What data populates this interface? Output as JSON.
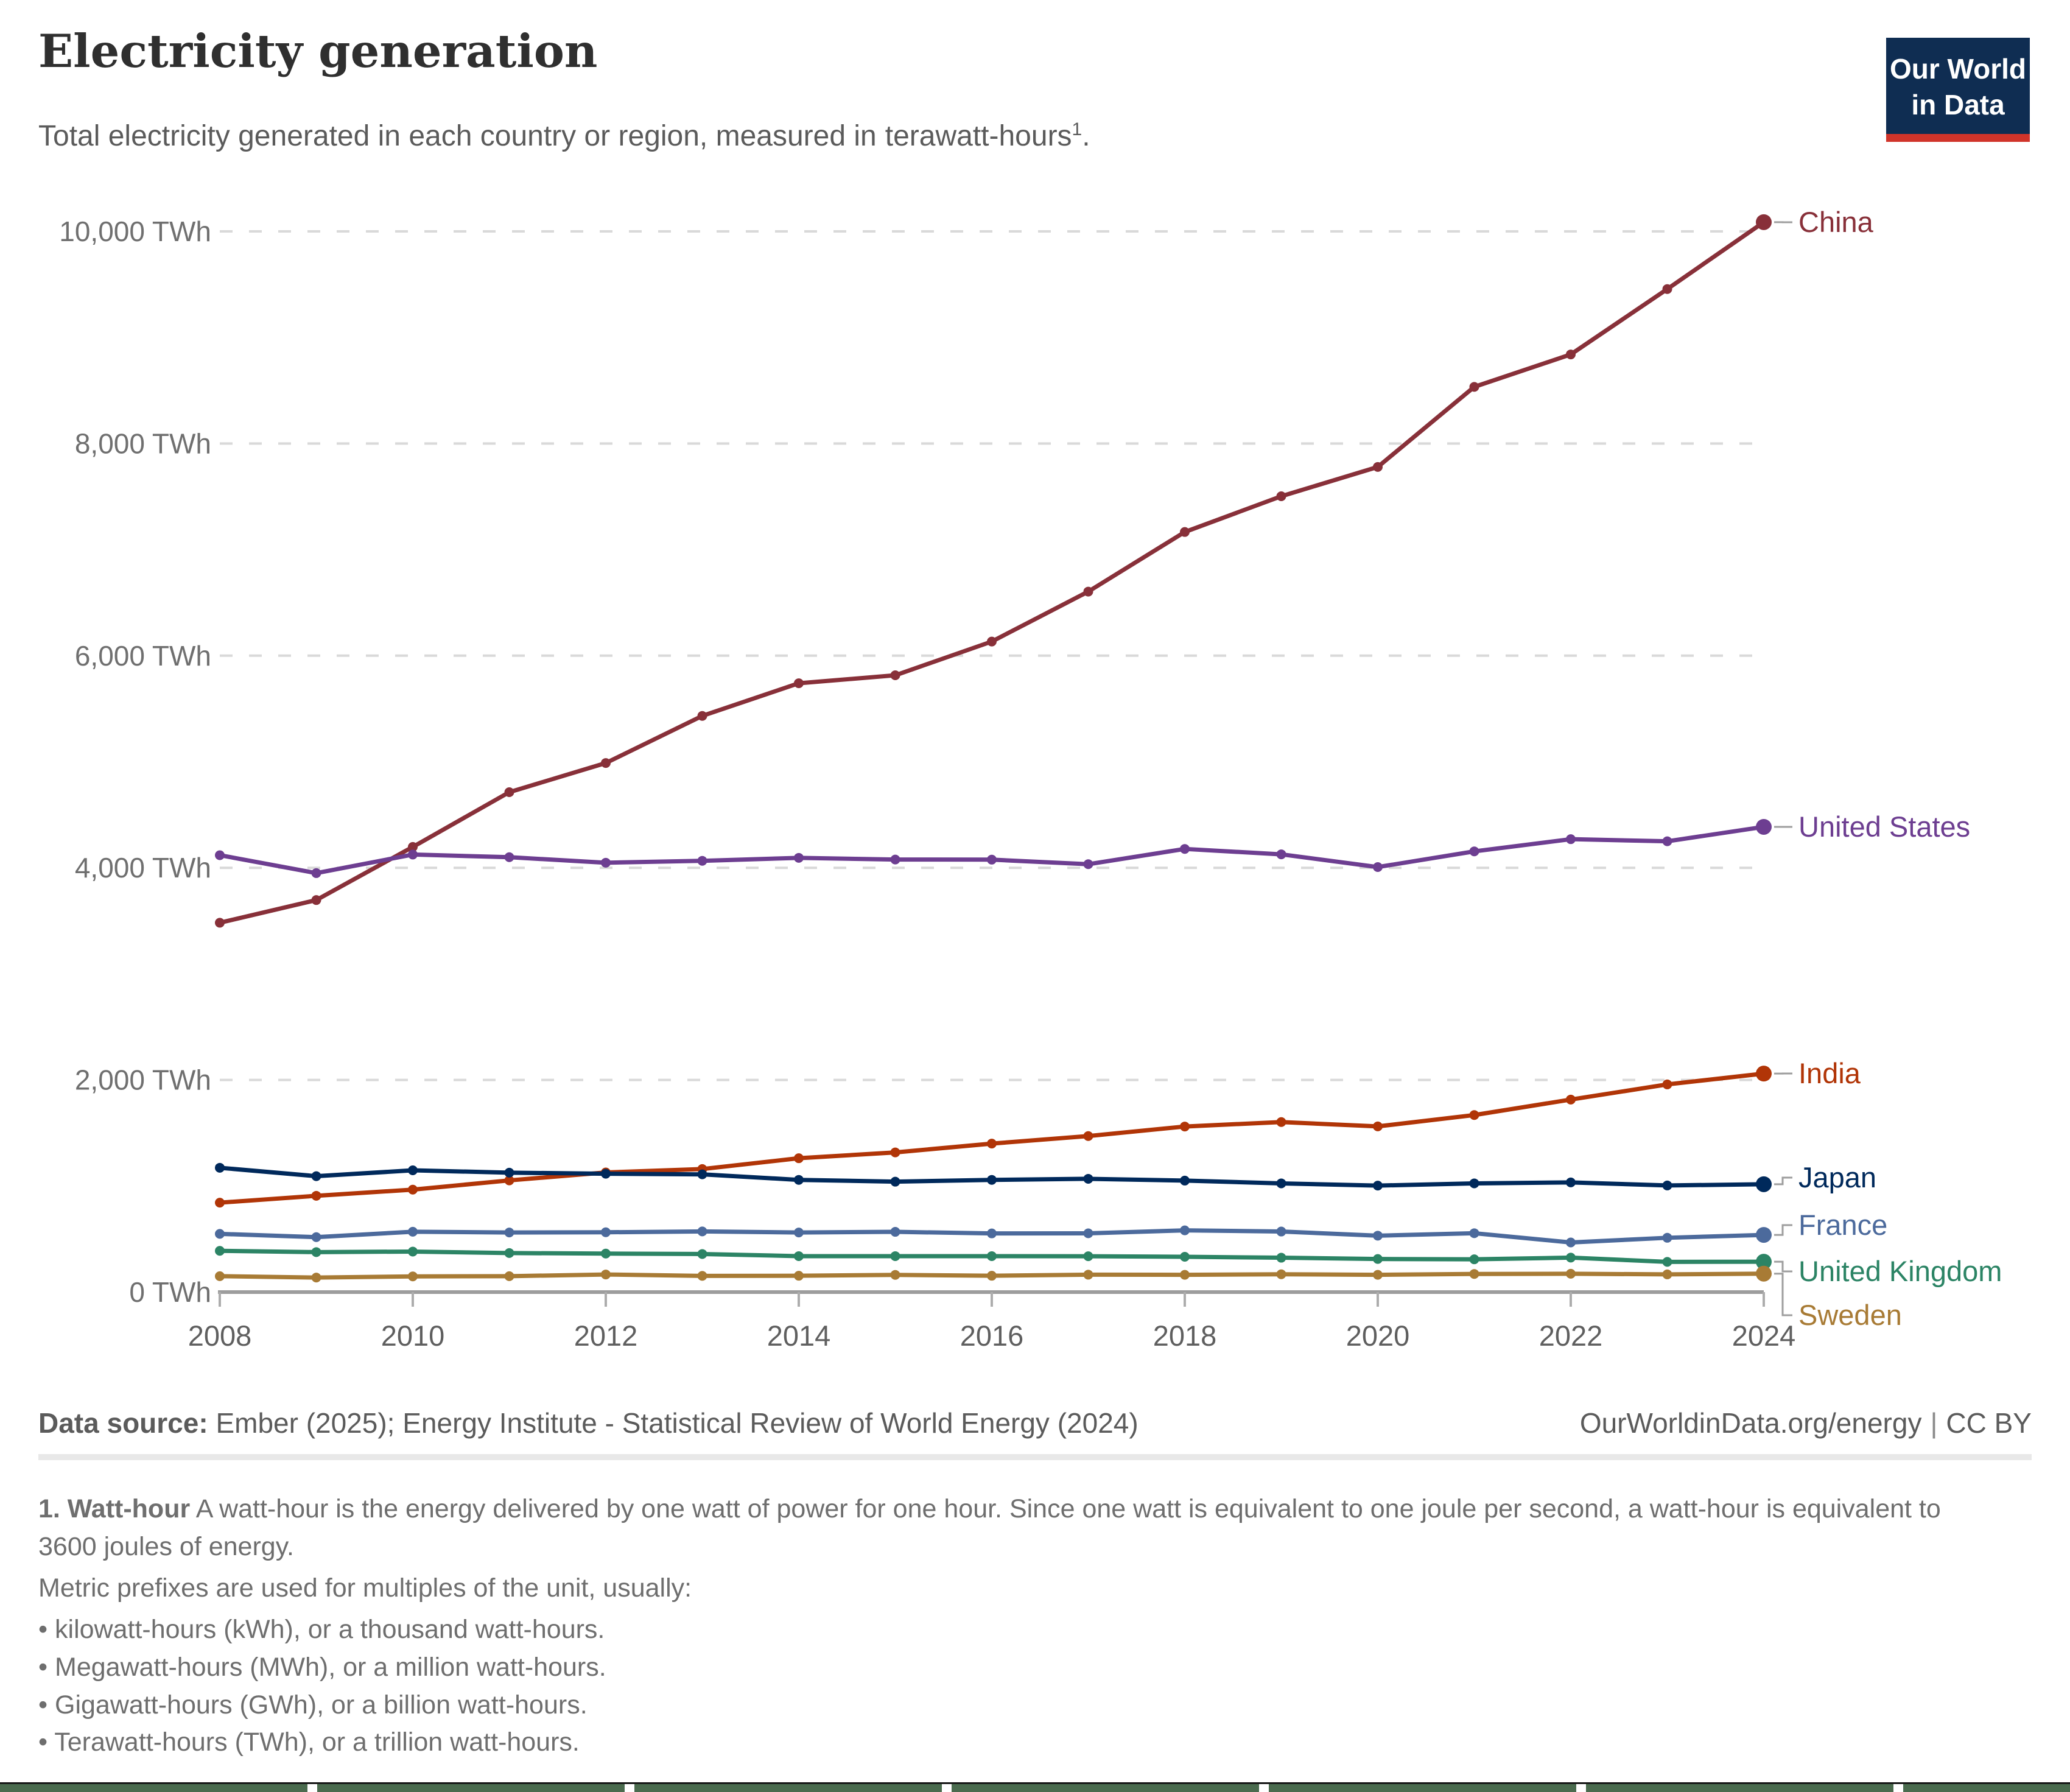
{
  "header": {
    "title": "Electricity generation",
    "subtitle_prefix": "Total electricity generated in each country or region, measured in",
    "subtitle_unit": "terawatt-hours",
    "subtitle_sup": "1",
    "subtitle_suffix": ".",
    "logo_line1": "Our World",
    "logo_line2": "in Data",
    "logo_bg_color": "#0f2d52",
    "logo_bar_color": "#d0342a"
  },
  "chart_data": {
    "type": "line",
    "title": "Electricity generation",
    "ylabel": "",
    "xlabel": "",
    "ylim": [
      0,
      10000
    ],
    "grid": "horizontal-dashed",
    "legend_position": "right-edge-labels",
    "x": [
      2008,
      2009,
      2010,
      2011,
      2012,
      2013,
      2014,
      2015,
      2016,
      2017,
      2018,
      2019,
      2020,
      2021,
      2022,
      2023,
      2024
    ],
    "x_ticks": [
      2008,
      2010,
      2012,
      2014,
      2016,
      2018,
      2020,
      2022,
      2024
    ],
    "y_ticks": [
      {
        "value": 0,
        "label": "0 TWh"
      },
      {
        "value": 2000,
        "label": "2,000 TWh"
      },
      {
        "value": 4000,
        "label": "4,000 TWh"
      },
      {
        "value": 6000,
        "label": "6,000 TWh"
      },
      {
        "value": 8000,
        "label": "8,000 TWh"
      },
      {
        "value": 10000,
        "label": "10,000 TWh"
      }
    ],
    "series": [
      {
        "name": "China",
        "color": "#883039",
        "label_y": 365,
        "values": [
          3482,
          3696,
          4197,
          4713,
          4988,
          5432,
          5740,
          5815,
          6133,
          6604,
          7166,
          7503,
          7779,
          8534,
          8840,
          9456,
          10087
        ]
      },
      {
        "name": "United States",
        "color": "#6D3E91",
        "label_y": 1358,
        "values": [
          4119,
          3950,
          4125,
          4100,
          4048,
          4066,
          4094,
          4078,
          4077,
          4034,
          4178,
          4127,
          4007,
          4155,
          4270,
          4250,
          4386
        ]
      },
      {
        "name": "India",
        "color": "#B13507",
        "label_y": 1763,
        "values": [
          843,
          908,
          966,
          1053,
          1128,
          1160,
          1262,
          1317,
          1400,
          1471,
          1561,
          1603,
          1562,
          1669,
          1815,
          1958,
          2060
        ]
      },
      {
        "name": "Japan",
        "color": "#00295B",
        "label_y": 1934,
        "values": [
          1172,
          1093,
          1148,
          1126,
          1116,
          1110,
          1058,
          1041,
          1058,
          1068,
          1051,
          1025,
          1004,
          1025,
          1034,
          1005,
          1017
        ]
      },
      {
        "name": "France",
        "color": "#4C6A9C",
        "label_y": 2012,
        "values": [
          549,
          518,
          569,
          562,
          564,
          572,
          562,
          568,
          553,
          554,
          582,
          571,
          532,
          555,
          468,
          512,
          539
        ]
      },
      {
        "name": "United Kingdom",
        "color": "#2C8465",
        "label_y": 2088,
        "values": [
          389,
          377,
          382,
          368,
          363,
          359,
          339,
          339,
          339,
          338,
          333,
          324,
          312,
          309,
          325,
          285,
          286
        ]
      },
      {
        "name": "Sweden",
        "color": "#A87B35",
        "label_y": 2160,
        "values": [
          150,
          137,
          148,
          150,
          166,
          153,
          154,
          162,
          154,
          164,
          163,
          168,
          163,
          171,
          173,
          167,
          174
        ]
      }
    ]
  },
  "footer": {
    "source_label": "Data source:",
    "source_text": "Ember (2025); Energy Institute - Statistical Review of World Energy (2024)",
    "url": "OurWorldinData.org/energy",
    "separator": "|",
    "license": "CC BY"
  },
  "footnote": {
    "term": "1. Watt-hour",
    "definition": " A watt-hour is the energy delivered by one watt of power for one hour. Since one watt is equivalent to one joule per second, a watt-hour is equivalent to 3600 joules of energy.",
    "metric_line": "Metric prefixes are used for multiples of the unit, usually:",
    "bullets": [
      "kilowatt-hours (kWh), or a thousand watt-hours.",
      "Megawatt-hours (MWh), or a million watt-hours.",
      "Gigawatt-hours (GWh), or a billion watt-hours.",
      "Terawatt-hours (TWh), or a trillion watt-hours."
    ]
  }
}
